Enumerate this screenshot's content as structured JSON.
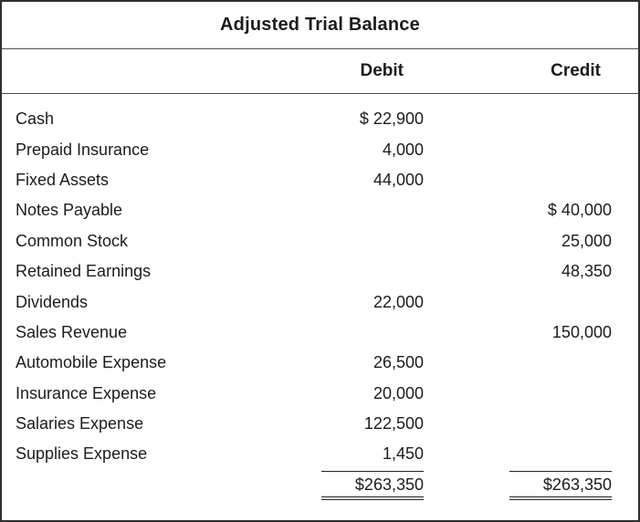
{
  "title": "Adjusted Trial Balance",
  "headers": {
    "debit": "Debit",
    "credit": "Credit"
  },
  "rows": [
    {
      "account": "Cash",
      "debit": "$ 22,900",
      "credit": ""
    },
    {
      "account": "Prepaid Insurance",
      "debit": "4,000",
      "credit": ""
    },
    {
      "account": "Fixed Assets",
      "debit": "44,000",
      "credit": ""
    },
    {
      "account": "Notes Payable",
      "debit": "",
      "credit": "$ 40,000"
    },
    {
      "account": "Common Stock",
      "debit": "",
      "credit": "25,000"
    },
    {
      "account": "Retained Earnings",
      "debit": "",
      "credit": "48,350"
    },
    {
      "account": "Dividends",
      "debit": "22,000",
      "credit": ""
    },
    {
      "account": "Sales Revenue",
      "debit": "",
      "credit": "150,000"
    },
    {
      "account": "Automobile Expense",
      "debit": "26,500",
      "credit": ""
    },
    {
      "account": "Insurance Expense",
      "debit": "20,000",
      "credit": ""
    },
    {
      "account": "Salaries Expense",
      "debit": "122,500",
      "credit": ""
    },
    {
      "account": "Supplies Expense",
      "debit": "1,450",
      "credit": ""
    }
  ],
  "totals": {
    "debit": "$263,350",
    "credit": "$263,350"
  },
  "colors": {
    "text": "#1c1c1c",
    "border": "#2e2e2e",
    "rule": "#4d4d4d",
    "background": "#ffffff"
  }
}
